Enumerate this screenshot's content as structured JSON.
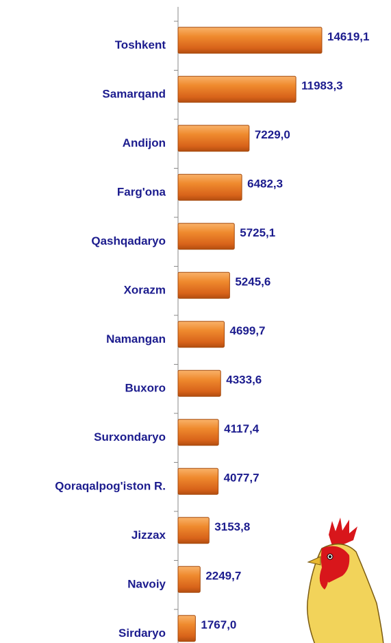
{
  "chart_data": {
    "type": "bar",
    "orientation": "horizontal",
    "categories": [
      "Toshkent",
      "Samarqand",
      "Andijon",
      "Farg'ona",
      "Qashqadaryo",
      "Xorazm",
      "Namangan",
      "Buxoro",
      "Surxondaryo",
      "Qoraqalpog'iston R.",
      "Jizzax",
      "Navoiy",
      "Sirdaryo"
    ],
    "values": [
      14619.1,
      11983.3,
      7229.0,
      6482.3,
      5725.1,
      5245.6,
      4699.7,
      4333.6,
      4117.4,
      4077.7,
      3153.8,
      2249.7,
      1767.0
    ],
    "value_labels": [
      "14619,1",
      "11983,3",
      "7229,0",
      "6482,3",
      "5725,1",
      "5245,6",
      "4699,7",
      "4333,6",
      "4117,4",
      "4077,7",
      "3153,8",
      "2249,7",
      "1767,0"
    ],
    "color": "#e8751f"
  }
}
